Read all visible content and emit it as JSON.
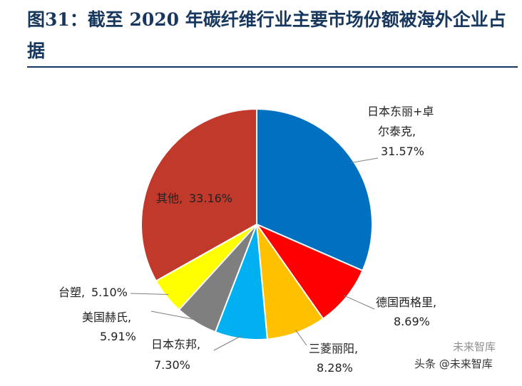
{
  "title": "图31：截至 2020 年碳纤维行业主要市场份额被海外企业占据",
  "chart_data": {
    "type": "pie",
    "title": "图31：截至 2020 年碳纤维行业主要市场份额被海外企业占据",
    "slices": [
      {
        "name": "日本东丽+卓尔泰克",
        "value": 31.57,
        "line1": "日本东丽+卓",
        "line2": "尔泰克,",
        "value_label": "31.57%",
        "color": "#0070c0"
      },
      {
        "name": "德国西格里",
        "value": 8.69,
        "line1": "德国西格里,",
        "value_label": "8.69%",
        "color": "#ff0000"
      },
      {
        "name": "三菱丽阳",
        "value": 8.28,
        "line1": "三菱丽阳,",
        "value_label": "8.28%",
        "color": "#ffc000"
      },
      {
        "name": "日本东邦",
        "value": 7.3,
        "line1": "日本东邦,",
        "value_label": "7.30%",
        "color": "#00b0f0"
      },
      {
        "name": "美国赫氏",
        "value": 5.91,
        "line1": "美国赫氏,",
        "value_label": "5.91%",
        "color": "#7f7f7f"
      },
      {
        "name": "台塑",
        "value": 5.1,
        "line1": "台塑,",
        "value_label": "5.10%",
        "color": "#ffff00"
      },
      {
        "name": "其他",
        "value": 33.16,
        "line1": "其他,",
        "value_label": "33.16%",
        "color": "#c0392b"
      }
    ]
  },
  "watermark": {
    "top_text": "未来智库",
    "bottom_text": "头条 @未来智库"
  }
}
